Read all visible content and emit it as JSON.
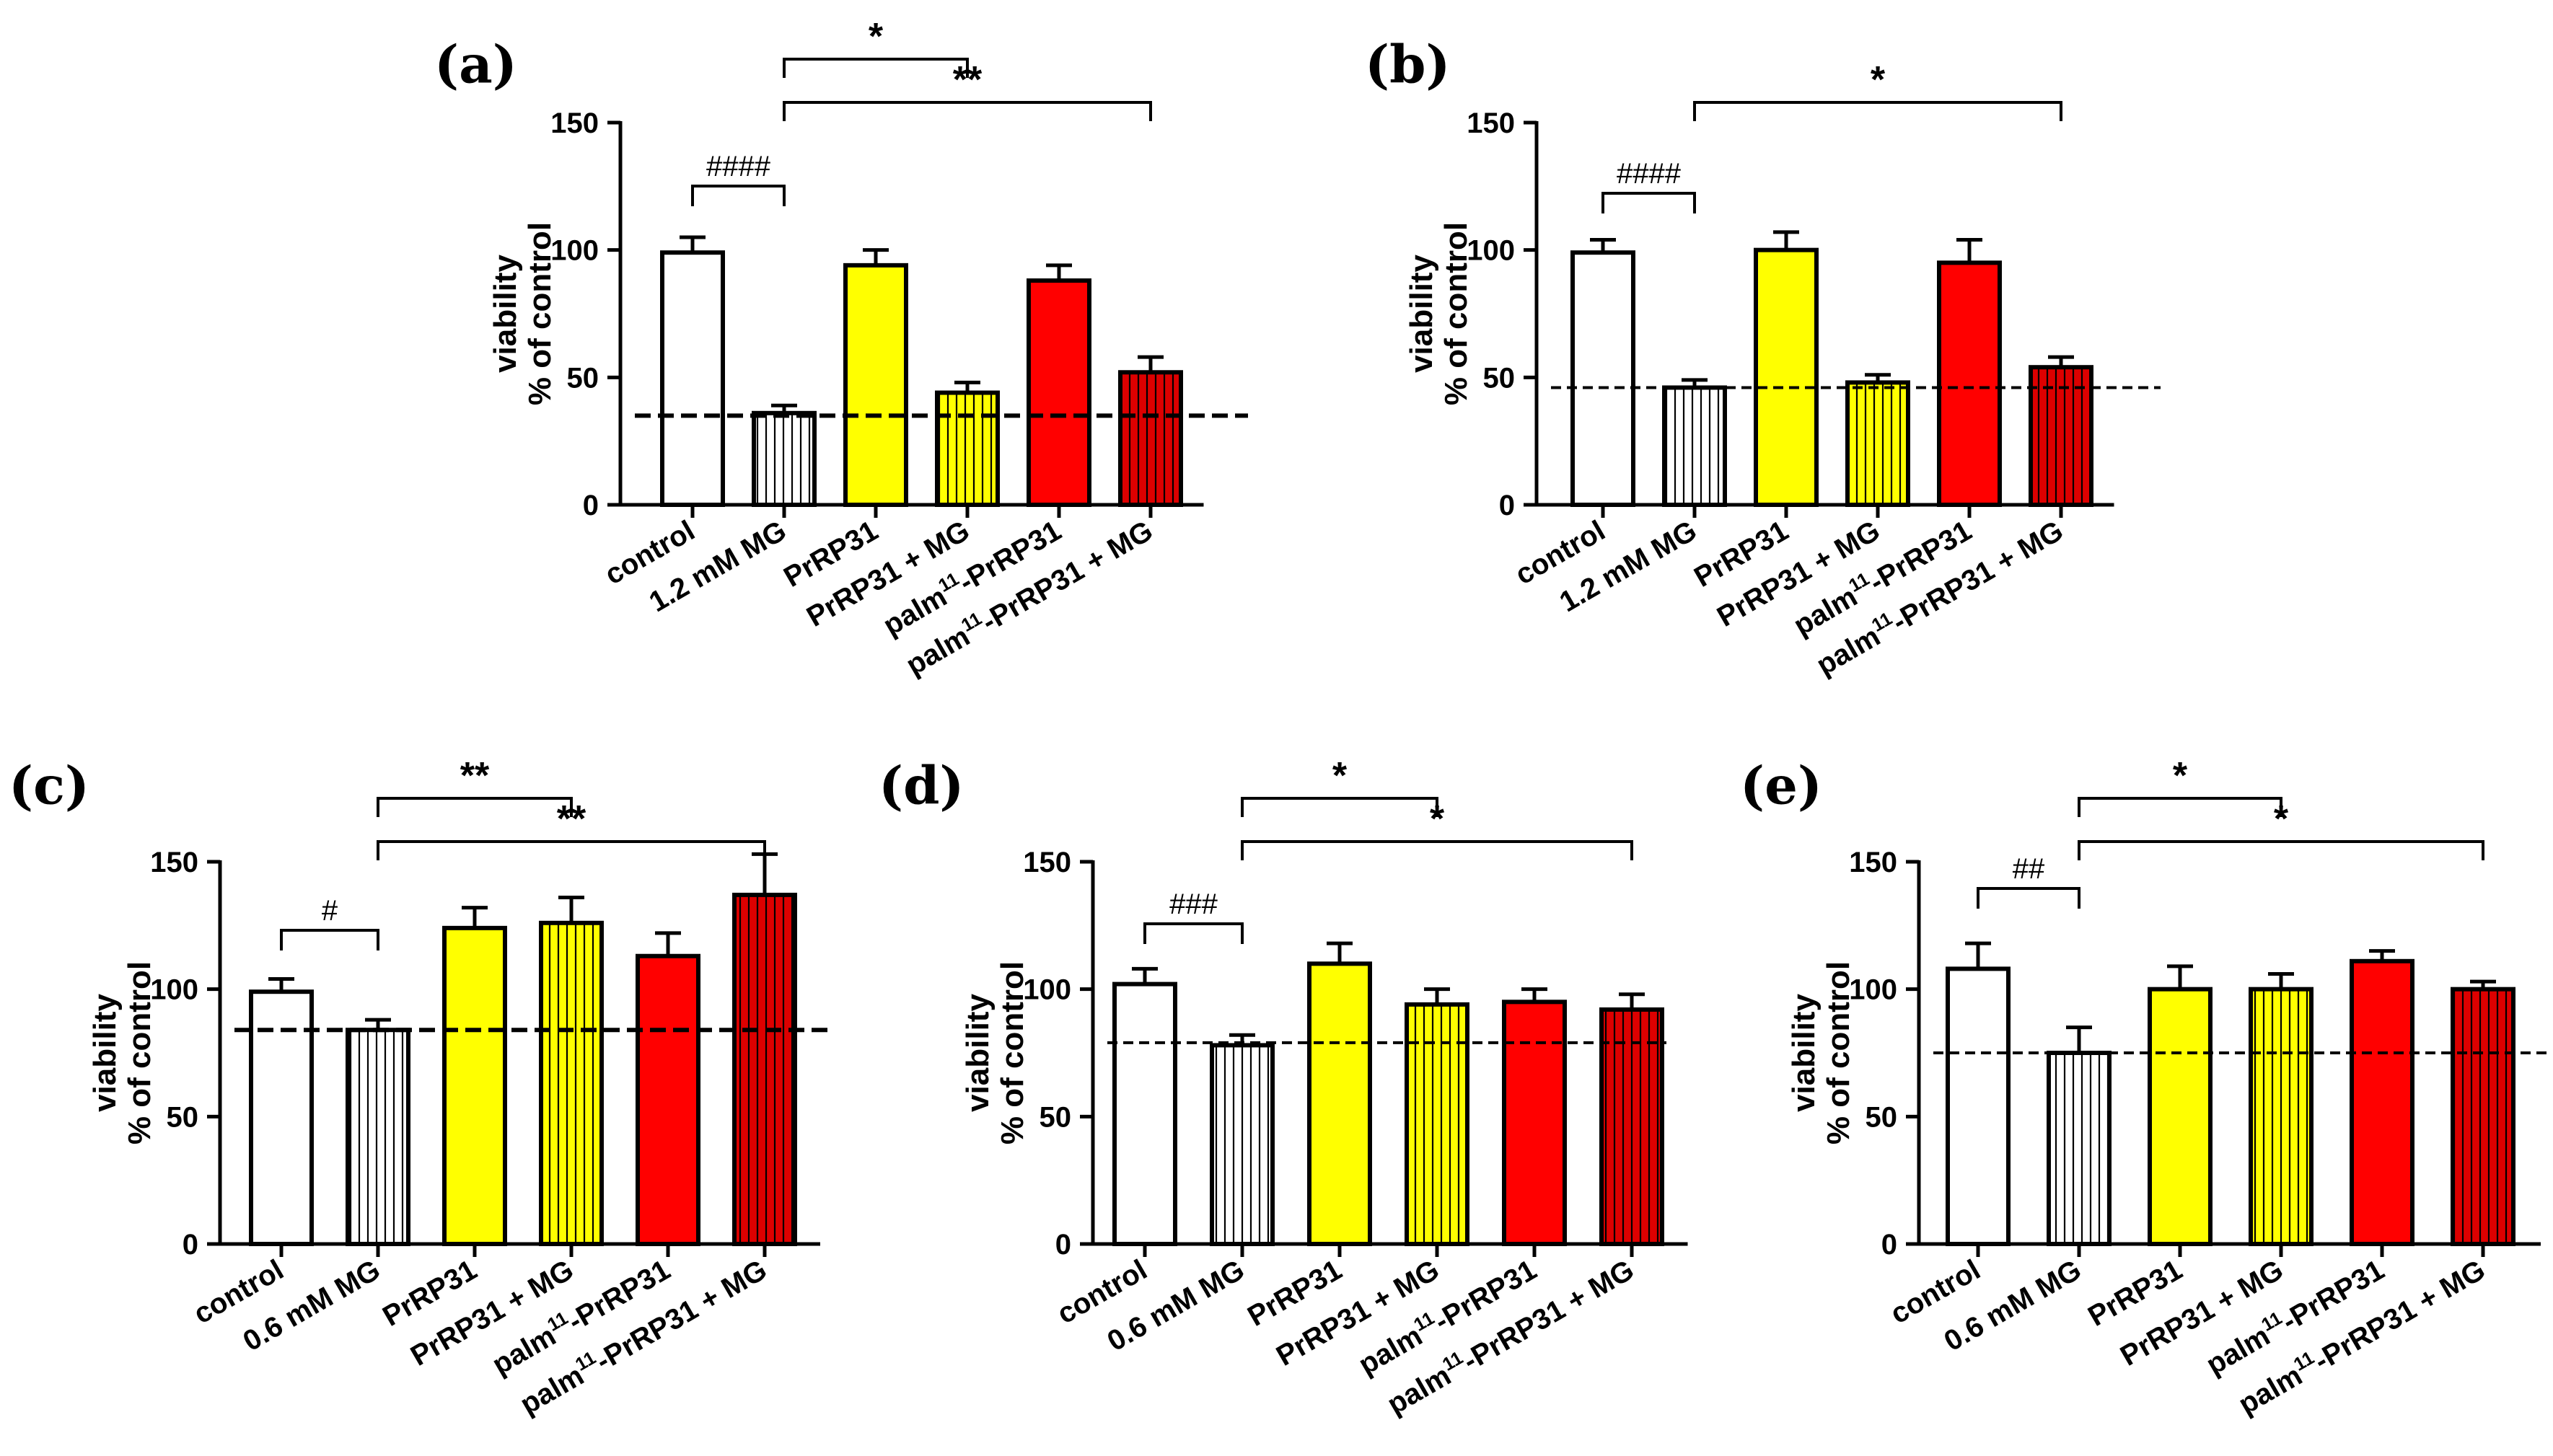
{
  "chart_data": [
    {
      "panel": "(a)",
      "type": "bar",
      "categories": [
        "control",
        "1.2 mM MG",
        "PrRP31",
        "PrRP31 + MG",
        "palm|11|-PrRP31",
        "palm|11|-PrRP31 + MG"
      ],
      "values": [
        99,
        36,
        94,
        44,
        88,
        52
      ],
      "errors": [
        6,
        3,
        6,
        4,
        6,
        6
      ],
      "fills": [
        "#ffffff",
        "#ffffff",
        "#ffff00",
        "#ffff00",
        "#ff0000",
        "#dd0000"
      ],
      "hatched": [
        false,
        true,
        false,
        true,
        false,
        true
      ],
      "baseline": 35,
      "ylabel": [
        "viability",
        "% of control"
      ],
      "ylim": [
        0,
        150
      ],
      "yticks": [
        0,
        50,
        100,
        150
      ],
      "brackets": [
        {
          "from": 0,
          "to": 1,
          "label": "####",
          "kind": "hash"
        },
        {
          "from": 1,
          "to": 3,
          "label": "*",
          "kind": "star"
        },
        {
          "from": 1,
          "to": 5,
          "label": "**",
          "kind": "star"
        }
      ]
    },
    {
      "panel": "(b)",
      "type": "bar",
      "categories": [
        "control",
        "1.2 mM MG",
        "PrRP31",
        "PrRP31 + MG",
        "palm|11|-PrRP31",
        "palm|11|-PrRP31 + MG"
      ],
      "values": [
        99,
        46,
        100,
        48,
        95,
        54
      ],
      "errors": [
        5,
        3,
        7,
        3,
        9,
        4
      ],
      "fills": [
        "#ffffff",
        "#ffffff",
        "#ffff00",
        "#ffff00",
        "#ff0000",
        "#dd0000"
      ],
      "hatched": [
        false,
        true,
        false,
        true,
        false,
        true
      ],
      "baseline": 46,
      "ylabel": [
        "viability",
        "% of control"
      ],
      "ylim": [
        0,
        150
      ],
      "yticks": [
        0,
        50,
        100,
        150
      ],
      "brackets": [
        {
          "from": 0,
          "to": 1,
          "label": "####",
          "kind": "hash"
        },
        {
          "from": 1,
          "to": 5,
          "label": "*",
          "kind": "star"
        }
      ]
    },
    {
      "panel": "(c)",
      "type": "bar",
      "categories": [
        "control",
        "0.6 mM MG",
        "PrRP31",
        "PrRP31 + MG",
        "palm|11|-PrRP31",
        "palm|11|-PrRP31 + MG"
      ],
      "values": [
        99,
        84,
        124,
        126,
        113,
        137
      ],
      "errors": [
        5,
        4,
        8,
        10,
        9,
        16
      ],
      "fills": [
        "#ffffff",
        "#ffffff",
        "#ffff00",
        "#ffff00",
        "#ff0000",
        "#dd0000"
      ],
      "hatched": [
        false,
        true,
        false,
        true,
        false,
        true
      ],
      "baseline": 84,
      "ylabel": [
        "viability",
        "% of control"
      ],
      "ylim": [
        0,
        150
      ],
      "yticks": [
        0,
        50,
        100,
        150
      ],
      "brackets": [
        {
          "from": 0,
          "to": 1,
          "label": "#",
          "kind": "hash"
        },
        {
          "from": 1,
          "to": 3,
          "label": "**",
          "kind": "star"
        },
        {
          "from": 1,
          "to": 5,
          "label": "**",
          "kind": "star"
        }
      ]
    },
    {
      "panel": "(d)",
      "type": "bar",
      "categories": [
        "control",
        "0.6 mM MG",
        "PrRP31",
        "PrRP31 + MG",
        "palm|11|-PrRP31",
        "palm|11|-PrRP31 + MG"
      ],
      "values": [
        102,
        78,
        110,
        94,
        95,
        92
      ],
      "errors": [
        6,
        4,
        8,
        6,
        5,
        6
      ],
      "fills": [
        "#ffffff",
        "#ffffff",
        "#ffff00",
        "#ffff00",
        "#ff0000",
        "#dd0000"
      ],
      "hatched": [
        false,
        true,
        false,
        true,
        false,
        true
      ],
      "baseline": 79,
      "ylabel": [
        "viability",
        "% of control"
      ],
      "ylim": [
        0,
        150
      ],
      "yticks": [
        0,
        50,
        100,
        150
      ],
      "brackets": [
        {
          "from": 0,
          "to": 1,
          "label": "###",
          "kind": "hash"
        },
        {
          "from": 1,
          "to": 3,
          "label": "*",
          "kind": "star"
        },
        {
          "from": 1,
          "to": 5,
          "label": "*",
          "kind": "star"
        }
      ]
    },
    {
      "panel": "(e)",
      "type": "bar",
      "categories": [
        "control",
        "0.6 mM MG",
        "PrRP31",
        "PrRP31 + MG",
        "palm|11|-PrRP31",
        "palm|11|-PrRP31 + MG"
      ],
      "values": [
        108,
        75,
        100,
        100,
        111,
        100
      ],
      "errors": [
        10,
        10,
        9,
        6,
        4,
        3
      ],
      "fills": [
        "#ffffff",
        "#ffffff",
        "#ffff00",
        "#ffff00",
        "#ff0000",
        "#dd0000"
      ],
      "hatched": [
        false,
        true,
        false,
        true,
        false,
        true
      ],
      "baseline": 75,
      "ylabel": [
        "viability",
        "% of control"
      ],
      "ylim": [
        0,
        150
      ],
      "yticks": [
        0,
        50,
        100,
        150
      ],
      "brackets": [
        {
          "from": 0,
          "to": 1,
          "label": "##",
          "kind": "hash"
        },
        {
          "from": 1,
          "to": 3,
          "label": "*",
          "kind": "star"
        },
        {
          "from": 1,
          "to": 5,
          "label": "*",
          "kind": "star"
        }
      ]
    }
  ]
}
